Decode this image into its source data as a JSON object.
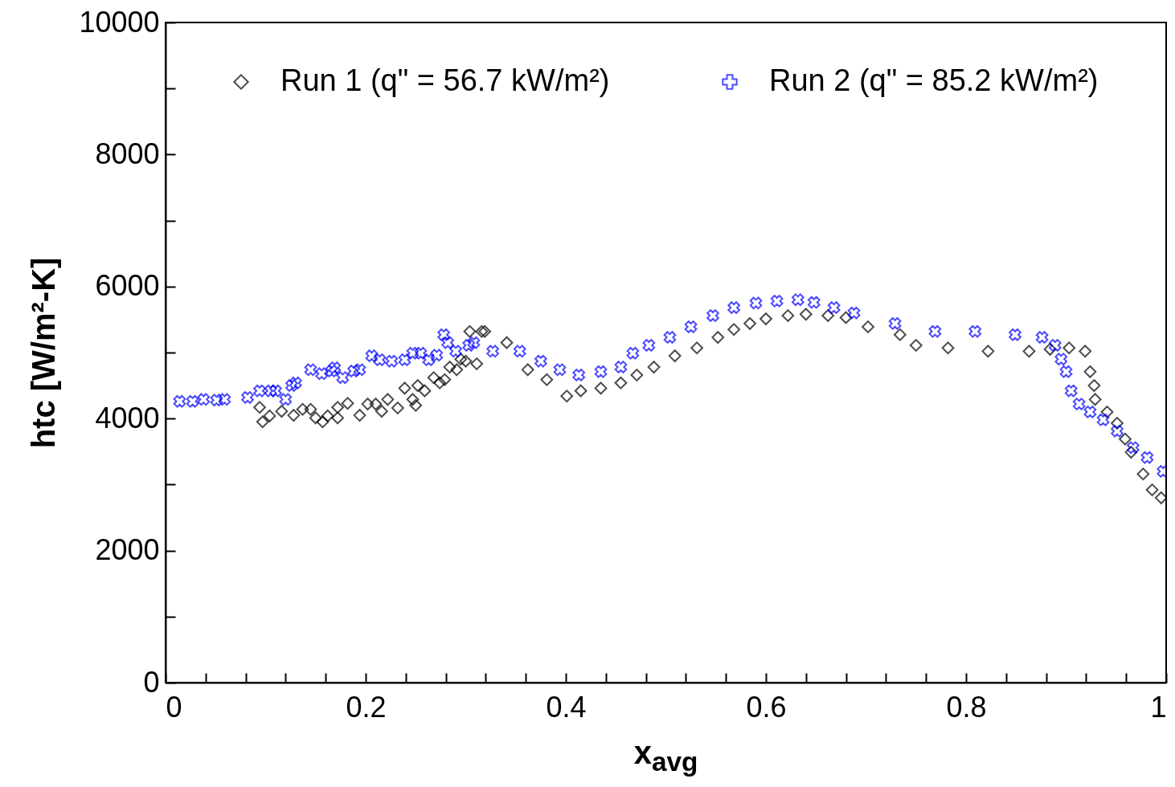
{
  "chart_data": {
    "type": "scatter",
    "xlabel": "x$_{avg}$",
    "ylabel": "htc [W/m²-K]",
    "xlim": [
      0,
      1
    ],
    "ylim": [
      0,
      10000
    ],
    "xticks": [
      0,
      {
        "value": 0.04,
        "label": null
      },
      {
        "value": 0.08,
        "label": null
      },
      {
        "value": 0.12,
        "label": null
      },
      {
        "value": 0.16,
        "label": null
      },
      0.2,
      {
        "value": 0.24,
        "label": null
      },
      {
        "value": 0.28,
        "label": null
      },
      {
        "value": 0.32,
        "label": null
      },
      {
        "value": 0.36,
        "label": null
      },
      0.4,
      {
        "value": 0.44,
        "label": null
      },
      {
        "value": 0.48,
        "label": null
      },
      {
        "value": 0.52,
        "label": null
      },
      {
        "value": 0.56,
        "label": null
      },
      0.6,
      {
        "value": 0.64,
        "label": null
      },
      {
        "value": 0.68,
        "label": null
      },
      {
        "value": 0.72,
        "label": null
      },
      {
        "value": 0.76,
        "label": null
      },
      0.8,
      {
        "value": 0.84,
        "label": null
      },
      {
        "value": 0.88,
        "label": null
      },
      {
        "value": 0.92,
        "label": null
      },
      {
        "value": 0.96,
        "label": null
      },
      1
    ],
    "yticks": [
      0,
      {
        "value": 1000,
        "label": null
      },
      2000,
      {
        "value": 3000,
        "label": null
      },
      4000,
      {
        "value": 5000,
        "label": null
      },
      6000,
      {
        "value": 7000,
        "label": null
      },
      8000,
      {
        "value": 9000,
        "label": null
      },
      10000
    ],
    "grid": false,
    "legend": "top left",
    "series": [
      {
        "name": "Run 1 (q\" = 56.7 kW/m²)",
        "color": "#000000",
        "marker": "diamond",
        "x": [
          0.094,
          0.097,
          0.104,
          0.116,
          0.128,
          0.137,
          0.145,
          0.15,
          0.157,
          0.162,
          0.172,
          0.172,
          0.182,
          0.194,
          0.202,
          0.21,
          0.216,
          0.222,
          0.232,
          0.239,
          0.247,
          0.25,
          0.252,
          0.259,
          0.268,
          0.274,
          0.279,
          0.284,
          0.291,
          0.295,
          0.3,
          0.304,
          0.311,
          0.316,
          0.319,
          0.341,
          0.362,
          0.381,
          0.401,
          0.415,
          0.435,
          0.455,
          0.471,
          0.488,
          0.509,
          0.531,
          0.552,
          0.568,
          0.584,
          0.6,
          0.622,
          0.64,
          0.662,
          0.68,
          0.702,
          0.734,
          0.75,
          0.782,
          0.822,
          0.863,
          0.884,
          0.903,
          0.919,
          0.924,
          0.928,
          0.929,
          0.941,
          0.951,
          0.959,
          0.965,
          0.977,
          0.986,
          0.995
        ],
        "values": [
          4170,
          3950,
          4040,
          4110,
          4050,
          4140,
          4140,
          4010,
          3950,
          4040,
          4010,
          4170,
          4230,
          4050,
          4220,
          4220,
          4110,
          4290,
          4160,
          4460,
          4290,
          4200,
          4500,
          4420,
          4620,
          4540,
          4590,
          4780,
          4740,
          4900,
          4870,
          5320,
          4830,
          5320,
          5320,
          5150,
          4740,
          4590,
          4340,
          4420,
          4460,
          4540,
          4660,
          4780,
          4950,
          5070,
          5230,
          5350,
          5440,
          5510,
          5560,
          5580,
          5560,
          5530,
          5390,
          5270,
          5110,
          5070,
          5020,
          5020,
          5050,
          5070,
          5020,
          4710,
          4500,
          4290,
          4100,
          3930,
          3690,
          3490,
          3160,
          2920,
          2800
        ]
      },
      {
        "name": "Run 2 (q\" = 85.2 kW/m²)",
        "color": "#0000ff",
        "marker": "cross",
        "x": [
          0.014,
          0.027,
          0.038,
          0.051,
          0.059,
          0.082,
          0.094,
          0.105,
          0.11,
          0.12,
          0.126,
          0.13,
          0.145,
          0.156,
          0.166,
          0.169,
          0.177,
          0.188,
          0.194,
          0.206,
          0.214,
          0.226,
          0.239,
          0.247,
          0.255,
          0.263,
          0.271,
          0.278,
          0.282,
          0.29,
          0.303,
          0.308,
          0.327,
          0.354,
          0.375,
          0.394,
          0.413,
          0.435,
          0.455,
          0.467,
          0.483,
          0.504,
          0.525,
          0.547,
          0.568,
          0.59,
          0.611,
          0.632,
          0.648,
          0.668,
          0.688,
          0.729,
          0.769,
          0.809,
          0.849,
          0.876,
          0.889,
          0.895,
          0.9,
          0.905,
          0.913,
          0.924,
          0.937,
          0.951,
          0.967,
          0.981,
          0.997
        ],
        "values": [
          4260,
          4260,
          4290,
          4280,
          4290,
          4320,
          4420,
          4420,
          4420,
          4290,
          4500,
          4540,
          4740,
          4680,
          4720,
          4770,
          4620,
          4720,
          4740,
          4950,
          4890,
          4870,
          4890,
          4990,
          4990,
          4890,
          4960,
          5270,
          5150,
          5020,
          5110,
          5150,
          5020,
          5020,
          4870,
          4740,
          4660,
          4710,
          4780,
          4990,
          5110,
          5230,
          5390,
          5560,
          5680,
          5750,
          5780,
          5800,
          5760,
          5680,
          5600,
          5440,
          5320,
          5320,
          5270,
          5230,
          5110,
          4900,
          4710,
          4420,
          4220,
          4100,
          3980,
          3810,
          3560,
          3410,
          3200
        ]
      }
    ]
  }
}
